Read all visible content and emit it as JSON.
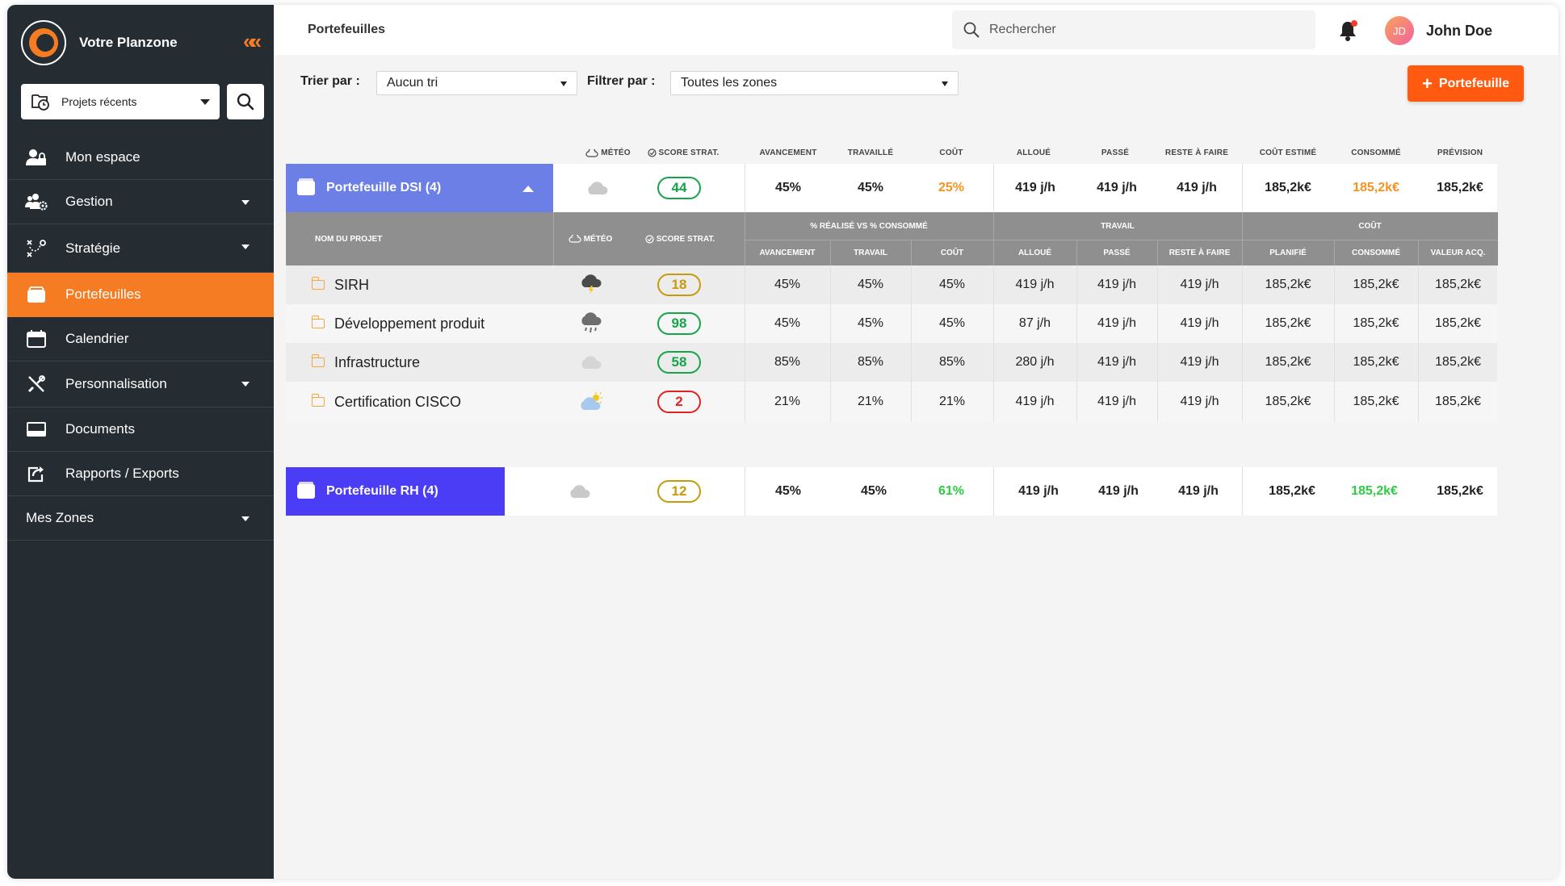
{
  "app": {
    "title": "Votre Planzone"
  },
  "sidebar": {
    "recent_projects": "Projets récents",
    "items": [
      {
        "label": "Mon espace",
        "icon": "user-lock-icon",
        "has_caret": false,
        "active": false
      },
      {
        "label": "Gestion",
        "icon": "users-gear-icon",
        "has_caret": true,
        "active": false
      },
      {
        "label": "Stratégie",
        "icon": "strategy-icon",
        "has_caret": true,
        "active": false
      },
      {
        "label": "Portefeuilles",
        "icon": "wallet-icon",
        "has_caret": false,
        "active": true
      },
      {
        "label": "Calendrier",
        "icon": "calendar-icon",
        "has_caret": false,
        "active": false
      },
      {
        "label": "Personnalisation",
        "icon": "tools-icon",
        "has_caret": true,
        "active": false
      },
      {
        "label": "Documents",
        "icon": "inbox-icon",
        "has_caret": false,
        "active": false
      },
      {
        "label": "Rapports / Exports",
        "icon": "export-icon",
        "has_caret": false,
        "active": false
      }
    ],
    "zones_label": "Mes Zones"
  },
  "header": {
    "breadcrumb": "Portefeuilles",
    "search_placeholder": "Rechercher",
    "user_initials": "JD",
    "user_name": "John Doe"
  },
  "toolbar": {
    "sort_label": "Trier par :",
    "sort_value": "Aucun tri",
    "filter_label": "Filtrer par :",
    "filter_value": "Toutes les zones",
    "add_label": "Portefeuille"
  },
  "columns": {
    "meteo": "Météo",
    "score": "Score strat.",
    "avancement": "Avancement",
    "travaille": "Travaillé",
    "cout": "Coût",
    "alloue": "Alloué",
    "passe": "Passé",
    "reste": "Reste à faire",
    "cout_estime": "Coût estimé",
    "consomme": "Consommé",
    "prevision": "Prévision"
  },
  "subheader": {
    "nom_projet": "Nom du projet",
    "meteo": "Météo",
    "score": "Score strat.",
    "group_realise": "% réalisé vs % consommé",
    "group_travail": "Travail",
    "group_cout": "Coût",
    "avancement": "Avancement",
    "travail": "Travail",
    "cout": "Coût",
    "alloue": "Alloué",
    "passe": "Passé",
    "reste": "Reste à faire",
    "planifie": "Planifié",
    "consomme": "Consommé",
    "valeur_acq": "Valeur acq."
  },
  "portfolios": [
    {
      "name": "Portefeuille DSI (4)",
      "color": "#6b7fe6",
      "weather": "cloudy",
      "score": "44",
      "score_level": "green",
      "avancement": "45%",
      "travaille": "45%",
      "cout": "25%",
      "alloue": "419 j/h",
      "passe": "419 j/h",
      "reste": "419 j/h",
      "cout_estime": "185,2k€",
      "consomme": "185,2k€",
      "prevision": "185,2k€"
    },
    {
      "name": "Portefeuille RH (4)",
      "color": "#4a3df5",
      "weather": "cloudy",
      "score": "12",
      "score_level": "yellow",
      "avancement": "45%",
      "travaille": "45%",
      "cout": "61%",
      "alloue": "419 j/h",
      "passe": "419 j/h",
      "reste": "419 j/h",
      "cout_estime": "185,2k€",
      "consomme": "185,2k€",
      "prevision": "185,2k€"
    }
  ],
  "projects": [
    {
      "name": "SIRH",
      "weather": "storm",
      "score": "18",
      "score_level": "yellow",
      "avancement": "45%",
      "travail": "45%",
      "cout": "45%",
      "alloue": "419 j/h",
      "passe": "419 j/h",
      "reste": "419 j/h",
      "planifie": "185,2k€",
      "consomme": "185,2k€",
      "valeur_acq": "185,2k€"
    },
    {
      "name": "Développement produit",
      "weather": "rain",
      "score": "98",
      "score_level": "green",
      "avancement": "45%",
      "travail": "45%",
      "cout": "45%",
      "alloue": "87 j/h",
      "passe": "419 j/h",
      "reste": "419 j/h",
      "planifie": "185,2k€",
      "consomme": "185,2k€",
      "valeur_acq": "185,2k€"
    },
    {
      "name": "Infrastructure",
      "weather": "cloudy-light",
      "score": "58",
      "score_level": "green",
      "avancement": "85%",
      "travail": "85%",
      "cout": "85%",
      "alloue": "280 j/h",
      "passe": "419 j/h",
      "reste": "419 j/h",
      "planifie": "185,2k€",
      "consomme": "185,2k€",
      "valeur_acq": "185,2k€"
    },
    {
      "name": "Certification CISCO",
      "weather": "sun-cloud",
      "score": "2",
      "score_level": "red",
      "avancement": "21%",
      "travail": "21%",
      "cout": "21%",
      "alloue": "419 j/h",
      "passe": "419 j/h",
      "reste": "419 j/h",
      "planifie": "185,2k€",
      "consomme": "185,2k€",
      "valeur_acq": "185,2k€"
    }
  ]
}
